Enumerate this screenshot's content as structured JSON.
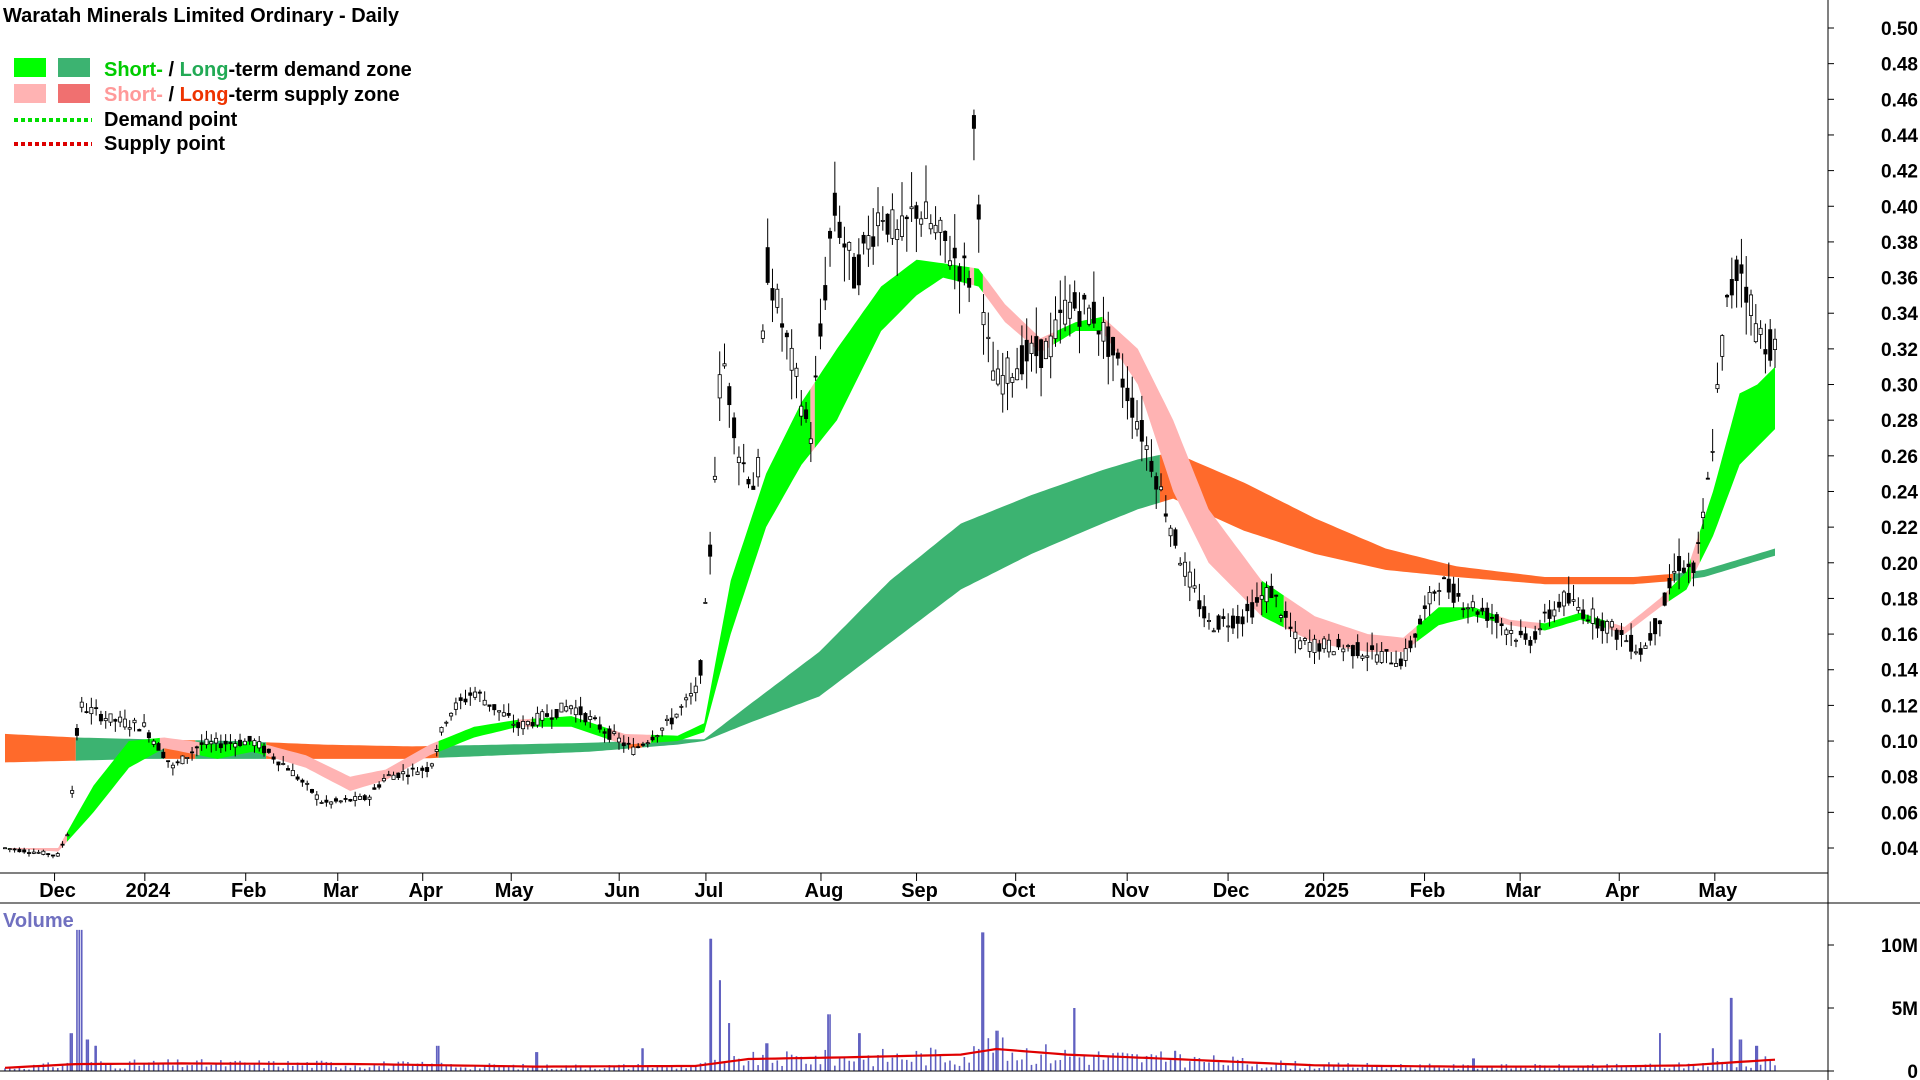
{
  "title": "Waratah Minerals Limited Ordinary - Daily",
  "legend": {
    "short_word": "Short-",
    "slash": " / ",
    "long_word": "Long",
    "demand_rest": "-term demand zone",
    "supply_rest": "-term supply zone",
    "demand_point": "Demand point",
    "supply_point": "Supply point"
  },
  "colors": {
    "short_demand": "#00ff00",
    "long_demand": "#3cb371",
    "short_supply": "#ffb3b3",
    "long_supply": "#ff6a2b",
    "long_supply_legend": "#f07070",
    "demand_point": "#00dd00",
    "supply_point": "#dd0000",
    "volume_bar": "#6060c0",
    "volume_ma": "#e00000",
    "label_green": "#00cc00",
    "label_long_green": "#22aa55",
    "label_short_red": "#ff9999",
    "label_long_red": "#ee3300"
  },
  "chart_data": {
    "type": "candlestick",
    "title": "Waratah Minerals Limited Ordinary - Daily",
    "ylim": [
      0.025,
      0.51
    ],
    "y_ticks": [
      "0.50",
      "0.48",
      "0.46",
      "0.44",
      "0.42",
      "0.40",
      "0.38",
      "0.36",
      "0.34",
      "0.32",
      "0.30",
      "0.28",
      "0.26",
      "0.24",
      "0.22",
      "0.20",
      "0.18",
      "0.16",
      "0.14",
      "0.12",
      "0.10",
      "0.08",
      "0.06",
      "0.04"
    ],
    "x_ticks": [
      {
        "label": "Dec",
        "t": 0.028
      },
      {
        "label": "2024",
        "t": 0.079
      },
      {
        "label": "Feb",
        "t": 0.136
      },
      {
        "label": "Mar",
        "t": 0.188
      },
      {
        "label": "Apr",
        "t": 0.236
      },
      {
        "label": "May",
        "t": 0.286
      },
      {
        "label": "Jun",
        "t": 0.347
      },
      {
        "label": "Jul",
        "t": 0.396
      },
      {
        "label": "Aug",
        "t": 0.461
      },
      {
        "label": "Sep",
        "t": 0.515
      },
      {
        "label": "Oct",
        "t": 0.571
      },
      {
        "label": "Nov",
        "t": 0.634
      },
      {
        "label": "Dec",
        "t": 0.691
      },
      {
        "label": "2025",
        "t": 0.745
      },
      {
        "label": "Feb",
        "t": 0.802
      },
      {
        "label": "Mar",
        "t": 0.856
      },
      {
        "label": "Apr",
        "t": 0.912
      },
      {
        "label": "May",
        "t": 0.966
      }
    ],
    "price_path": [
      [
        0.0,
        0.04
      ],
      [
        0.03,
        0.036
      ],
      [
        0.036,
        0.05
      ],
      [
        0.042,
        0.12
      ],
      [
        0.06,
        0.112
      ],
      [
        0.079,
        0.108
      ],
      [
        0.095,
        0.085
      ],
      [
        0.11,
        0.098
      ],
      [
        0.14,
        0.1
      ],
      [
        0.16,
        0.085
      ],
      [
        0.18,
        0.065
      ],
      [
        0.205,
        0.068
      ],
      [
        0.215,
        0.08
      ],
      [
        0.24,
        0.085
      ],
      [
        0.25,
        0.115
      ],
      [
        0.265,
        0.128
      ],
      [
        0.29,
        0.108
      ],
      [
        0.32,
        0.12
      ],
      [
        0.34,
        0.105
      ],
      [
        0.355,
        0.095
      ],
      [
        0.375,
        0.11
      ],
      [
        0.392,
        0.13
      ],
      [
        0.398,
        0.2
      ],
      [
        0.405,
        0.32
      ],
      [
        0.415,
        0.26
      ],
      [
        0.425,
        0.24
      ],
      [
        0.43,
        0.37
      ],
      [
        0.44,
        0.33
      ],
      [
        0.455,
        0.27
      ],
      [
        0.468,
        0.4
      ],
      [
        0.48,
        0.36
      ],
      [
        0.495,
        0.4
      ],
      [
        0.505,
        0.38
      ],
      [
        0.515,
        0.4
      ],
      [
        0.53,
        0.38
      ],
      [
        0.545,
        0.36
      ],
      [
        0.548,
        0.46
      ],
      [
        0.553,
        0.33
      ],
      [
        0.56,
        0.3
      ],
      [
        0.575,
        0.315
      ],
      [
        0.59,
        0.32
      ],
      [
        0.6,
        0.345
      ],
      [
        0.615,
        0.34
      ],
      [
        0.625,
        0.32
      ],
      [
        0.64,
        0.28
      ],
      [
        0.65,
        0.25
      ],
      [
        0.665,
        0.2
      ],
      [
        0.68,
        0.165
      ],
      [
        0.7,
        0.17
      ],
      [
        0.715,
        0.185
      ],
      [
        0.73,
        0.155
      ],
      [
        0.76,
        0.152
      ],
      [
        0.79,
        0.145
      ],
      [
        0.81,
        0.19
      ],
      [
        0.825,
        0.178
      ],
      [
        0.84,
        0.17
      ],
      [
        0.86,
        0.155
      ],
      [
        0.88,
        0.18
      ],
      [
        0.905,
        0.165
      ],
      [
        0.925,
        0.15
      ],
      [
        0.935,
        0.17
      ],
      [
        0.945,
        0.2
      ],
      [
        0.955,
        0.195
      ],
      [
        0.963,
        0.25
      ],
      [
        0.972,
        0.34
      ],
      [
        0.98,
        0.37
      ],
      [
        0.99,
        0.33
      ],
      [
        1.0,
        0.32
      ]
    ],
    "short_term_zone": [
      [
        0.0,
        0.04,
        0.04
      ],
      [
        0.03,
        0.038,
        0.04
      ],
      [
        0.05,
        0.06,
        0.075
      ],
      [
        0.07,
        0.085,
        0.1
      ],
      [
        0.09,
        0.096,
        0.102
      ],
      [
        0.12,
        0.09,
        0.098
      ],
      [
        0.14,
        0.094,
        0.1
      ],
      [
        0.17,
        0.085,
        0.092
      ],
      [
        0.195,
        0.072,
        0.08
      ],
      [
        0.215,
        0.078,
        0.084
      ],
      [
        0.24,
        0.092,
        0.098
      ],
      [
        0.265,
        0.102,
        0.108
      ],
      [
        0.29,
        0.108,
        0.112
      ],
      [
        0.32,
        0.108,
        0.114
      ],
      [
        0.35,
        0.098,
        0.104
      ],
      [
        0.38,
        0.1,
        0.103
      ],
      [
        0.395,
        0.105,
        0.11
      ],
      [
        0.41,
        0.16,
        0.19
      ],
      [
        0.43,
        0.22,
        0.25
      ],
      [
        0.45,
        0.255,
        0.29
      ],
      [
        0.47,
        0.28,
        0.32
      ],
      [
        0.495,
        0.33,
        0.355
      ],
      [
        0.515,
        0.35,
        0.37
      ],
      [
        0.53,
        0.36,
        0.368
      ],
      [
        0.55,
        0.355,
        0.365
      ],
      [
        0.565,
        0.335,
        0.345
      ],
      [
        0.585,
        0.318,
        0.326
      ],
      [
        0.605,
        0.33,
        0.335
      ],
      [
        0.62,
        0.33,
        0.338
      ],
      [
        0.64,
        0.3,
        0.32
      ],
      [
        0.66,
        0.24,
        0.28
      ],
      [
        0.68,
        0.2,
        0.23
      ],
      [
        0.71,
        0.17,
        0.19
      ],
      [
        0.74,
        0.155,
        0.17
      ],
      [
        0.77,
        0.15,
        0.16
      ],
      [
        0.79,
        0.15,
        0.158
      ],
      [
        0.81,
        0.165,
        0.175
      ],
      [
        0.83,
        0.17,
        0.175
      ],
      [
        0.85,
        0.165,
        0.168
      ],
      [
        0.87,
        0.162,
        0.166
      ],
      [
        0.89,
        0.168,
        0.172
      ],
      [
        0.915,
        0.16,
        0.164
      ],
      [
        0.935,
        0.175,
        0.18
      ],
      [
        0.95,
        0.185,
        0.195
      ],
      [
        0.965,
        0.215,
        0.24
      ],
      [
        0.98,
        0.255,
        0.295
      ],
      [
        0.99,
        0.265,
        0.3
      ],
      [
        1.0,
        0.275,
        0.31
      ]
    ],
    "long_term_zone": [
      [
        0.0,
        0.088,
        0.104
      ],
      [
        0.04,
        0.089,
        0.102
      ],
      [
        0.08,
        0.09,
        0.101
      ],
      [
        0.13,
        0.09,
        0.1
      ],
      [
        0.18,
        0.09,
        0.098
      ],
      [
        0.23,
        0.09,
        0.097
      ],
      [
        0.28,
        0.092,
        0.098
      ],
      [
        0.33,
        0.094,
        0.099
      ],
      [
        0.38,
        0.098,
        0.101
      ],
      [
        0.395,
        0.1,
        0.101
      ],
      [
        0.42,
        0.11,
        0.12
      ],
      [
        0.46,
        0.125,
        0.15
      ],
      [
        0.5,
        0.155,
        0.19
      ],
      [
        0.54,
        0.185,
        0.222
      ],
      [
        0.58,
        0.205,
        0.238
      ],
      [
        0.62,
        0.222,
        0.252
      ],
      [
        0.64,
        0.23,
        0.258
      ],
      [
        0.66,
        0.236,
        0.262
      ],
      [
        0.7,
        0.218,
        0.245
      ],
      [
        0.74,
        0.205,
        0.225
      ],
      [
        0.78,
        0.196,
        0.208
      ],
      [
        0.82,
        0.192,
        0.198
      ],
      [
        0.87,
        0.188,
        0.192
      ],
      [
        0.92,
        0.188,
        0.192
      ],
      [
        0.945,
        0.19,
        0.194
      ],
      [
        0.96,
        0.192,
        0.196
      ],
      [
        0.98,
        0.198,
        0.202
      ],
      [
        1.0,
        0.204,
        0.208
      ]
    ],
    "volume": {
      "label": "Volume",
      "ylim": [
        0,
        12
      ],
      "y_ticks": [
        "10M",
        "5M",
        "0"
      ],
      "spikes": [
        [
          0.037,
          3.0
        ],
        [
          0.042,
          11.2
        ],
        [
          0.047,
          2.5
        ],
        [
          0.051,
          2.0
        ],
        [
          0.245,
          2.0
        ],
        [
          0.3,
          1.5
        ],
        [
          0.36,
          1.8
        ],
        [
          0.399,
          10.5
        ],
        [
          0.404,
          7.2
        ],
        [
          0.409,
          3.8
        ],
        [
          0.43,
          2.2
        ],
        [
          0.465,
          4.5
        ],
        [
          0.483,
          3.0
        ],
        [
          0.552,
          11.0
        ],
        [
          0.56,
          3.2
        ],
        [
          0.604,
          5.0
        ],
        [
          0.661,
          1.6
        ],
        [
          0.83,
          1.0
        ],
        [
          0.935,
          3.0
        ],
        [
          0.965,
          1.8
        ],
        [
          0.975,
          5.8
        ],
        [
          0.98,
          2.5
        ],
        [
          0.99,
          2.0
        ]
      ],
      "ma": [
        [
          0.0,
          0.25
        ],
        [
          0.04,
          0.55
        ],
        [
          0.1,
          0.6
        ],
        [
          0.2,
          0.55
        ],
        [
          0.3,
          0.35
        ],
        [
          0.39,
          0.4
        ],
        [
          0.42,
          0.95
        ],
        [
          0.48,
          1.1
        ],
        [
          0.54,
          1.3
        ],
        [
          0.56,
          1.75
        ],
        [
          0.6,
          1.3
        ],
        [
          0.66,
          0.95
        ],
        [
          0.74,
          0.45
        ],
        [
          0.82,
          0.35
        ],
        [
          0.9,
          0.35
        ],
        [
          0.95,
          0.45
        ],
        [
          1.0,
          0.9
        ]
      ]
    }
  }
}
